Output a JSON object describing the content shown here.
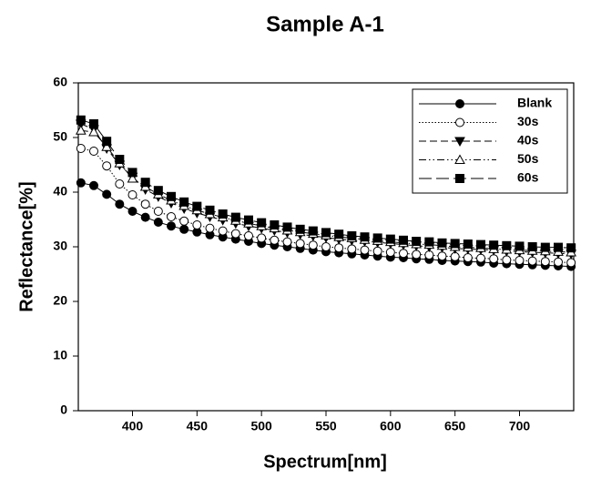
{
  "chart_data": {
    "type": "line",
    "title": "Sample A-1",
    "xlabel": "Spectrum[nm]",
    "ylabel": "Reflectance[%]",
    "x": [
      360,
      370,
      380,
      390,
      400,
      410,
      420,
      430,
      440,
      450,
      460,
      470,
      480,
      490,
      500,
      510,
      520,
      530,
      540,
      550,
      560,
      570,
      580,
      590,
      600,
      610,
      620,
      630,
      640,
      650,
      660,
      670,
      680,
      690,
      700,
      710,
      720,
      730,
      740
    ],
    "xlim": [
      358,
      742
    ],
    "xticks": [
      400,
      450,
      500,
      550,
      600,
      650,
      700
    ],
    "ylim": [
      0,
      60
    ],
    "yticks": [
      0,
      10,
      20,
      30,
      40,
      50,
      60
    ],
    "legend": "upper right",
    "series": [
      {
        "name": "Blank",
        "color": "#000000",
        "marker": "circle-filled",
        "dash": "solid",
        "values": [
          41.7,
          41.2,
          39.6,
          37.8,
          36.5,
          35.4,
          34.5,
          33.8,
          33.2,
          32.7,
          32.2,
          31.8,
          31.4,
          31.0,
          30.6,
          30.3,
          30.0,
          29.7,
          29.4,
          29.1,
          28.9,
          28.7,
          28.5,
          28.3,
          28.1,
          28.0,
          27.8,
          27.7,
          27.5,
          27.4,
          27.3,
          27.2,
          27.0,
          26.9,
          26.8,
          26.7,
          26.6,
          26.5,
          26.4
        ]
      },
      {
        "name": "30s",
        "color": "#000000",
        "marker": "circle-open",
        "dash": "dotted",
        "values": [
          48.0,
          47.5,
          44.8,
          41.5,
          39.5,
          37.8,
          36.5,
          35.5,
          34.7,
          34.0,
          33.4,
          32.9,
          32.4,
          32.0,
          31.6,
          31.2,
          30.9,
          30.6,
          30.3,
          30.0,
          29.8,
          29.6,
          29.4,
          29.2,
          29.0,
          28.8,
          28.6,
          28.5,
          28.3,
          28.2,
          28.0,
          27.9,
          27.8,
          27.6,
          27.5,
          27.4,
          27.3,
          27.2,
          27.1
        ]
      },
      {
        "name": "40s",
        "color": "#000000",
        "marker": "triangle-down-filled",
        "dash": "dashed",
        "values": [
          52.5,
          51.5,
          48.0,
          45.0,
          42.8,
          40.5,
          39.2,
          38.0,
          37.0,
          36.2,
          35.5,
          34.9,
          34.3,
          33.8,
          33.4,
          33.0,
          32.6,
          32.3,
          32.0,
          31.7,
          31.4,
          31.2,
          31.0,
          30.8,
          30.6,
          30.4,
          30.2,
          30.0,
          29.9,
          29.7,
          29.6,
          29.5,
          29.4,
          29.2,
          29.1,
          29.0,
          28.9,
          28.8,
          28.7
        ]
      },
      {
        "name": "50s",
        "color": "#000000",
        "marker": "triangle-up-open",
        "dash": "dashdotdot",
        "values": [
          51.3,
          51.0,
          48.3,
          45.3,
          42.5,
          41.0,
          39.6,
          38.5,
          37.5,
          36.7,
          36.0,
          35.4,
          34.8,
          34.3,
          33.8,
          33.4,
          33.0,
          32.7,
          32.4,
          32.1,
          31.8,
          31.6,
          31.3,
          31.1,
          30.9,
          30.7,
          30.5,
          30.4,
          30.2,
          30.0,
          29.9,
          29.8,
          29.6,
          29.5,
          29.4,
          29.3,
          29.2,
          29.1,
          29.0
        ]
      },
      {
        "name": "60s",
        "color": "#000000",
        "marker": "square-filled",
        "dash": "longdash",
        "values": [
          53.2,
          52.5,
          49.3,
          46.0,
          43.6,
          41.8,
          40.3,
          39.2,
          38.2,
          37.4,
          36.7,
          36.0,
          35.4,
          34.9,
          34.4,
          34.0,
          33.6,
          33.2,
          32.9,
          32.6,
          32.3,
          32.0,
          31.8,
          31.6,
          31.4,
          31.2,
          31.0,
          30.9,
          30.7,
          30.6,
          30.5,
          30.4,
          30.3,
          30.2,
          30.1,
          30.0,
          29.9,
          29.9,
          29.8
        ]
      }
    ]
  }
}
